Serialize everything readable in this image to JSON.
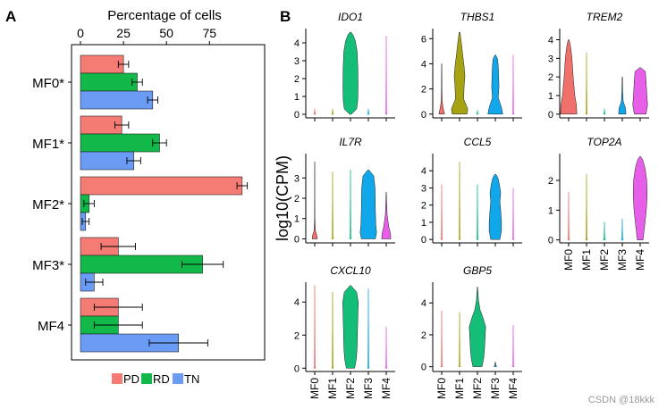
{
  "watermark": "CSDN @18kkk",
  "panel_labels": {
    "a": "A",
    "b": "B"
  },
  "colors": {
    "PD": "#f47c74",
    "RD": "#13b84a",
    "TN": "#6b9cf5",
    "MF0": "#f0706c",
    "MF1": "#a6a312",
    "MF2": "#14bd78",
    "MF3": "#11a7eb",
    "MF4": "#e75fe8"
  },
  "chart_data": [
    {
      "type": "bar",
      "orientation": "horizontal",
      "title": "Percentage of cells",
      "categories": [
        "MF0*",
        "MF1*",
        "MF2*",
        "MF3*",
        "MF4"
      ],
      "xlim": [
        0,
        105
      ],
      "xticks": [
        0,
        25,
        50,
        75
      ],
      "xtick_labels": [
        "0",
        "25",
        "50",
        "75"
      ],
      "legend": {
        "placement": "bottom",
        "entries": [
          "PD",
          "RD",
          "TN"
        ]
      },
      "series": [
        {
          "name": "PD",
          "values": [
            25,
            24,
            94,
            22,
            22
          ],
          "errors": [
            3,
            4,
            3,
            10,
            14
          ]
        },
        {
          "name": "RD",
          "values": [
            33,
            46,
            5,
            71,
            22
          ],
          "errors": [
            3,
            4,
            3,
            12,
            14
          ]
        },
        {
          "name": "TN",
          "values": [
            42,
            31,
            3,
            8,
            57
          ],
          "errors": [
            3,
            4,
            2,
            5,
            17
          ]
        }
      ]
    },
    {
      "type": "violin",
      "ylabel": "log10(CPM)",
      "categories": [
        "MF0",
        "MF1",
        "MF2",
        "MF3",
        "MF4"
      ],
      "panels": [
        {
          "gene": "IDO1",
          "ylim": [
            -0.2,
            4.8
          ],
          "yticks": [
            0,
            1,
            2,
            3,
            4
          ],
          "ytick_labels": [
            "0",
            "1",
            "2",
            "3",
            "4"
          ],
          "max": [
            0.3,
            0.3,
            4.6,
            0.3,
            4.4
          ],
          "main": [
            0,
            0,
            1,
            0,
            0
          ],
          "xlabels": false
        },
        {
          "gene": "THBS1",
          "ylim": [
            -0.3,
            6.8
          ],
          "yticks": [
            0,
            2,
            4,
            6
          ],
          "ytick_labels": [
            "0",
            "2",
            "4",
            "6"
          ],
          "max": [
            4.0,
            6.5,
            0.3,
            4.7,
            4.7
          ],
          "main": [
            0.35,
            1,
            0,
            0.9,
            0
          ],
          "xlabels": false
        },
        {
          "gene": "TREM2",
          "ylim": [
            -0.2,
            4.6
          ],
          "yticks": [
            0,
            1,
            2,
            3,
            4
          ],
          "ytick_labels": [
            "0",
            "1",
            "2",
            "3",
            "4"
          ],
          "max": [
            4.0,
            3.3,
            0.3,
            2.0,
            2.5
          ],
          "main": [
            1,
            0,
            0,
            0.45,
            0.9
          ],
          "xlabels": false
        },
        {
          "gene": "IL7R",
          "ylim": [
            -0.2,
            4.2
          ],
          "yticks": [
            0,
            1,
            2,
            3
          ],
          "ytick_labels": [
            "0",
            "1",
            "2",
            "3"
          ],
          "max": [
            3.8,
            3.3,
            3.4,
            3.4,
            2.3
          ],
          "main": [
            0.3,
            0,
            0,
            1,
            0.55
          ],
          "xlabels": false
        },
        {
          "gene": "CCL5",
          "ylim": [
            -0.2,
            5.0
          ],
          "yticks": [
            0,
            1,
            2,
            3,
            4
          ],
          "ytick_labels": [
            "0",
            "1",
            "2",
            "3",
            "4"
          ],
          "max": [
            3.2,
            4.5,
            3.2,
            3.8,
            3.0
          ],
          "main": [
            0,
            0,
            0,
            1,
            0
          ],
          "xlabels": false
        },
        {
          "gene": "TOP2A",
          "ylim": [
            -0.1,
            2.9
          ],
          "yticks": [
            0,
            1,
            2
          ],
          "ytick_labels": [
            "0",
            "1",
            "2"
          ],
          "max": [
            1.6,
            2.2,
            0.6,
            0.7,
            2.8
          ],
          "main": [
            0,
            0,
            0,
            0,
            1
          ],
          "xlabels": true
        },
        {
          "gene": "CXCL10",
          "ylim": [
            -0.2,
            5.2
          ],
          "yticks": [
            0,
            2,
            4
          ],
          "ytick_labels": [
            "0",
            "2",
            "4"
          ],
          "max": [
            5.0,
            4.6,
            5.0,
            4.8,
            2.5
          ],
          "main": [
            0,
            0,
            1,
            0,
            0
          ],
          "xlabels": true
        },
        {
          "gene": "GBP5",
          "ylim": [
            -0.3,
            5.3
          ],
          "yticks": [
            0,
            2,
            4
          ],
          "ytick_labels": [
            "0",
            "2",
            "4"
          ],
          "max": [
            3.5,
            3.4,
            5.0,
            3.0,
            2.6
          ],
          "main": [
            0,
            0,
            1,
            0.15,
            0
          ],
          "xlabels": true
        }
      ]
    }
  ]
}
